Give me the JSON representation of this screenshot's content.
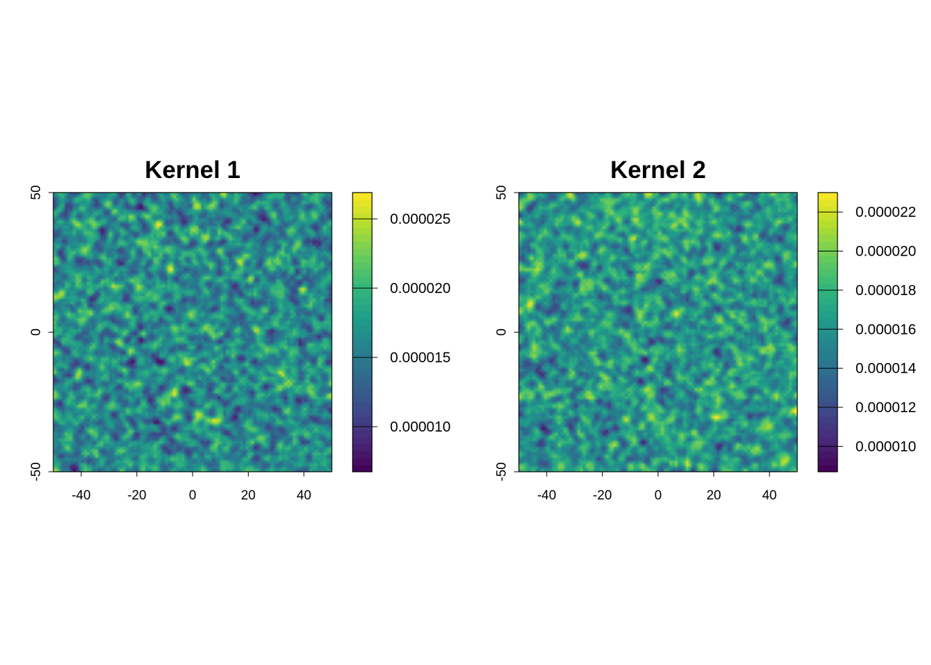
{
  "chart_data": [
    {
      "type": "heatmap",
      "title": "Kernel 1",
      "xlim": [
        -50,
        50
      ],
      "ylim": [
        -50,
        50
      ],
      "x_ticks": [
        -40,
        -20,
        0,
        20,
        40
      ],
      "y_ticks": [
        -50,
        0,
        50
      ],
      "x_tick_labels": [
        "-40",
        "-20",
        "0",
        "20",
        "40"
      ],
      "y_tick_labels": [
        "-50",
        "0",
        "50"
      ],
      "colorbar": {
        "range": [
          6.75e-06,
          2.69e-05
        ],
        "ticks": [
          1e-05,
          1.5e-05,
          2e-05,
          2.5e-05
        ],
        "tick_labels": [
          "0.000010",
          "0.000015",
          "0.000020",
          "0.000025"
        ],
        "colormap": "viridis"
      },
      "field": {
        "description_of_values": "spatially correlated noise",
        "grid": [
          100,
          100
        ],
        "mean": 1.65e-05,
        "sd": 2.8e-06,
        "seed": 11
      }
    },
    {
      "type": "heatmap",
      "title": "Kernel 2",
      "xlim": [
        -50,
        50
      ],
      "ylim": [
        -50,
        50
      ],
      "x_ticks": [
        -40,
        -20,
        0,
        20,
        40
      ],
      "y_ticks": [
        -50,
        0,
        50
      ],
      "x_tick_labels": [
        "-40",
        "-20",
        "0",
        "20",
        "40"
      ],
      "y_tick_labels": [
        "-50",
        "0",
        "50"
      ],
      "colorbar": {
        "range": [
          8.7e-06,
          2.3e-05
        ],
        "ticks": [
          1e-05,
          1.2e-05,
          1.4e-05,
          1.6e-05,
          1.8e-05,
          2e-05,
          2.2e-05
        ],
        "tick_labels": [
          "0.000010",
          "0.000012",
          "0.000014",
          "0.000016",
          "0.000018",
          "0.000020",
          "0.000022"
        ],
        "colormap": "viridis"
      },
      "field": {
        "description_of_values": "spatially correlated noise",
        "grid": [
          100,
          100
        ],
        "mean": 1.63e-05,
        "sd": 1.9e-06,
        "seed": 23
      }
    }
  ]
}
